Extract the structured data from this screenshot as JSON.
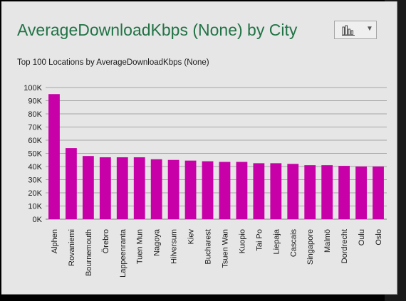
{
  "header": {
    "title": "AverageDownloadKbps (None) by City",
    "chart_type_icon": "bar-chart-icon",
    "dropdown_icon": "chevron-down-icon"
  },
  "colors": {
    "bar": "#c800a8",
    "title": "#217346",
    "grid": "#a6a6a6"
  },
  "chart_data": {
    "type": "bar",
    "title": "Top 100 Locations by AverageDownloadKbps (None)",
    "categories": [
      "Alphen",
      "Rovaniemi",
      "Bournemouth",
      "Örebro",
      "Lappeenranta",
      "Tuen Mun",
      "Nagoya",
      "Hilversum",
      "Kiev",
      "Bucharest",
      "Tsuen Wan",
      "Kuopio",
      "Tai Po",
      "Liepaja",
      "Cascais",
      "Singapore",
      "Malmö",
      "Dordrecht",
      "Oulu",
      "Oslo"
    ],
    "values": [
      95000,
      54000,
      48000,
      47000,
      47000,
      47000,
      45500,
      45000,
      44500,
      44000,
      43500,
      43500,
      42500,
      42500,
      42000,
      41000,
      41000,
      40500,
      40000,
      40000
    ],
    "yticks": [
      "0K",
      "10K",
      "20K",
      "30K",
      "40K",
      "50K",
      "60K",
      "70K",
      "80K",
      "90K",
      "100K"
    ],
    "ylim": [
      0,
      100000
    ],
    "grid": true,
    "xlabel": "",
    "ylabel": ""
  }
}
